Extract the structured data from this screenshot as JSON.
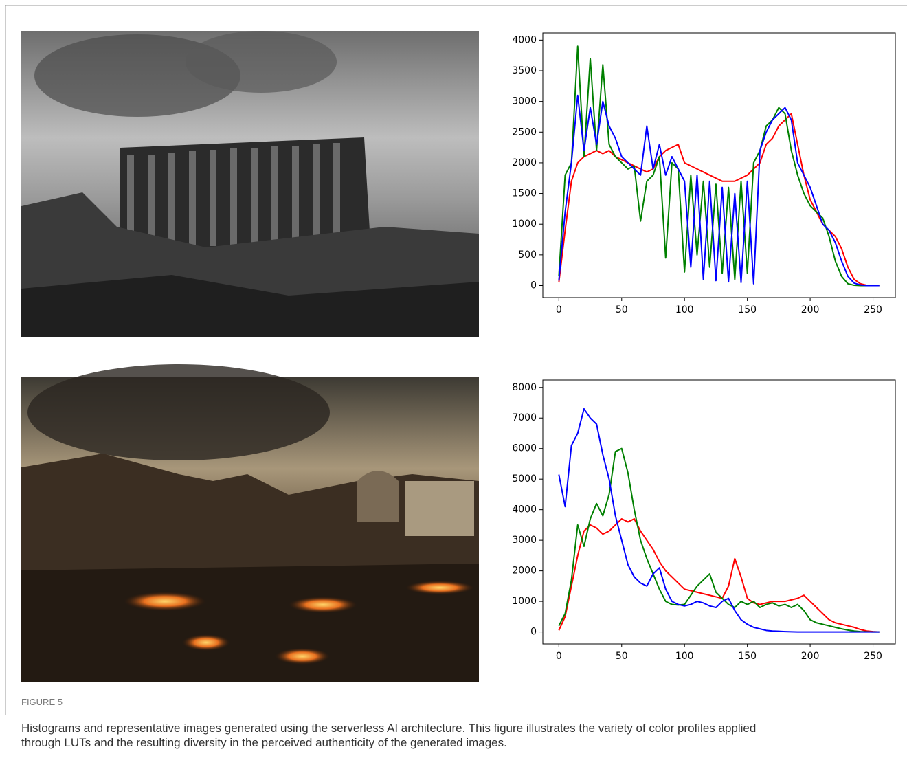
{
  "figure": {
    "label": "FIGURE 5",
    "caption": [
      "Histograms and representative images generated using the serverless AI architecture. This figure illustrates the variety of color profiles applied",
      "through LUTs and the resulting diversity in the perceived authenticity of the generated images."
    ]
  },
  "chart_data": [
    {
      "type": "line",
      "x": [
        0,
        5,
        10,
        15,
        20,
        25,
        30,
        35,
        40,
        45,
        50,
        55,
        60,
        65,
        70,
        75,
        80,
        85,
        90,
        95,
        100,
        105,
        110,
        115,
        120,
        125,
        130,
        135,
        140,
        145,
        150,
        155,
        160,
        165,
        170,
        175,
        180,
        185,
        190,
        195,
        200,
        205,
        210,
        215,
        220,
        225,
        230,
        235,
        240,
        245,
        250,
        255
      ],
      "xlim": [
        -12.75,
        267.75
      ],
      "xticks": [
        0,
        50,
        100,
        150,
        200,
        250
      ],
      "ylim": [
        -196,
        4116
      ],
      "yticks": [
        0,
        500,
        1000,
        1500,
        2000,
        2500,
        3000,
        3500,
        4000
      ],
      "series": [
        {
          "name": "red",
          "color": "#ff0000",
          "values": [
            50,
            900,
            1700,
            2000,
            2100,
            2150,
            2200,
            2150,
            2200,
            2100,
            2050,
            2000,
            1950,
            1900,
            1850,
            1900,
            2100,
            2200,
            2250,
            2300,
            2000,
            1950,
            1900,
            1850,
            1800,
            1750,
            1700,
            1700,
            1700,
            1750,
            1800,
            1900,
            2000,
            2300,
            2400,
            2600,
            2700,
            2800,
            2300,
            1800,
            1400,
            1200,
            1000,
            900,
            800,
            600,
            300,
            100,
            30,
            5,
            0,
            0
          ]
        },
        {
          "name": "green",
          "color": "#008000",
          "values": [
            150,
            1800,
            2000,
            3900,
            2100,
            3700,
            2200,
            3600,
            2300,
            2100,
            2000,
            1900,
            1950,
            1050,
            1700,
            1800,
            2100,
            450,
            2000,
            1900,
            220,
            1800,
            500,
            1700,
            300,
            1650,
            200,
            1600,
            100,
            1700,
            200,
            2000,
            2200,
            2600,
            2700,
            2900,
            2800,
            2200,
            1800,
            1500,
            1300,
            1200,
            1100,
            800,
            400,
            150,
            30,
            5,
            0,
            0,
            0,
            0
          ]
        },
        {
          "name": "blue",
          "color": "#0000ff",
          "values": [
            80,
            1200,
            2000,
            3100,
            2200,
            2900,
            2300,
            3000,
            2600,
            2400,
            2100,
            2000,
            1900,
            1800,
            2600,
            1900,
            2300,
            1800,
            2100,
            1900,
            1700,
            300,
            1800,
            100,
            1700,
            80,
            1600,
            60,
            1500,
            50,
            1700,
            30,
            2200,
            2500,
            2700,
            2800,
            2900,
            2700,
            2000,
            1800,
            1600,
            1300,
            1000,
            900,
            700,
            400,
            150,
            40,
            10,
            0,
            0,
            0
          ]
        }
      ]
    },
    {
      "type": "line",
      "x": [
        0,
        5,
        10,
        15,
        20,
        25,
        30,
        35,
        40,
        45,
        50,
        55,
        60,
        65,
        70,
        75,
        80,
        85,
        90,
        95,
        100,
        105,
        110,
        115,
        120,
        125,
        130,
        135,
        140,
        145,
        150,
        155,
        160,
        165,
        170,
        175,
        180,
        185,
        190,
        195,
        200,
        205,
        210,
        215,
        220,
        225,
        230,
        235,
        240,
        245,
        250,
        255
      ],
      "xlim": [
        -12.75,
        267.75
      ],
      "xticks": [
        0,
        50,
        100,
        150,
        200,
        250
      ],
      "ylim": [
        -392,
        8242
      ],
      "yticks": [
        0,
        1000,
        2000,
        3000,
        4000,
        5000,
        6000,
        7000,
        8000
      ],
      "series": [
        {
          "name": "red",
          "color": "#ff0000",
          "values": [
            50,
            500,
            1500,
            2500,
            3300,
            3500,
            3400,
            3200,
            3300,
            3500,
            3700,
            3600,
            3700,
            3300,
            3000,
            2700,
            2300,
            2000,
            1800,
            1600,
            1400,
            1350,
            1300,
            1250,
            1200,
            1150,
            1100,
            1500,
            2400,
            1800,
            1100,
            950,
            900,
            950,
            1000,
            1000,
            1000,
            1050,
            1100,
            1200,
            1000,
            800,
            600,
            400,
            300,
            250,
            200,
            150,
            80,
            30,
            10,
            0
          ]
        },
        {
          "name": "green",
          "color": "#008000",
          "values": [
            200,
            600,
            1700,
            3500,
            2800,
            3700,
            4200,
            3800,
            4500,
            5900,
            6000,
            5200,
            4000,
            3000,
            2400,
            1900,
            1400,
            1000,
            900,
            880,
            900,
            1200,
            1500,
            1700,
            1900,
            1300,
            1100,
            900,
            800,
            1000,
            900,
            1000,
            800,
            900,
            950,
            850,
            900,
            800,
            900,
            700,
            400,
            300,
            250,
            200,
            150,
            100,
            60,
            30,
            10,
            5,
            0,
            0
          ]
        },
        {
          "name": "blue",
          "color": "#0000ff",
          "values": [
            5150,
            4100,
            6100,
            6500,
            7300,
            7000,
            6800,
            5800,
            5000,
            3800,
            3000,
            2200,
            1800,
            1600,
            1500,
            1900,
            2100,
            1400,
            1000,
            900,
            850,
            900,
            1000,
            950,
            850,
            800,
            1000,
            1100,
            700,
            400,
            250,
            150,
            100,
            50,
            30,
            20,
            10,
            5,
            0,
            0,
            0,
            0,
            0,
            0,
            0,
            0,
            0,
            0,
            0,
            0,
            0,
            0
          ]
        }
      ]
    }
  ]
}
